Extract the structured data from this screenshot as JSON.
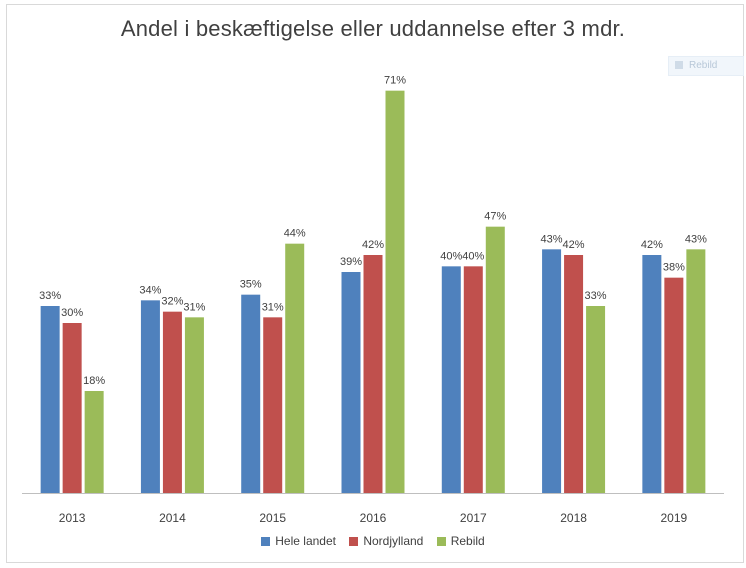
{
  "window": {
    "ghost_label": "Rebild"
  },
  "chart_data": {
    "type": "bar",
    "title": "Andel i beskæftigelse eller uddannelse efter 3 mdr.",
    "categories": [
      "2013",
      "2014",
      "2015",
      "2016",
      "2017",
      "2018",
      "2019"
    ],
    "series": [
      {
        "name": "Hele landet",
        "color": "#4f81bd",
        "values": [
          33,
          34,
          35,
          39,
          40,
          43,
          42
        ]
      },
      {
        "name": "Nordjylland",
        "color": "#c0504d",
        "values": [
          30,
          32,
          31,
          42,
          40,
          42,
          38
        ]
      },
      {
        "name": "Rebild",
        "color": "#9bbb59",
        "values": [
          18,
          31,
          44,
          71,
          47,
          33,
          43
        ]
      }
    ],
    "value_suffix": "%",
    "ylim": [
      0,
      75
    ],
    "xlabel": "",
    "ylabel": "",
    "grid": false,
    "legend_position": "bottom"
  }
}
